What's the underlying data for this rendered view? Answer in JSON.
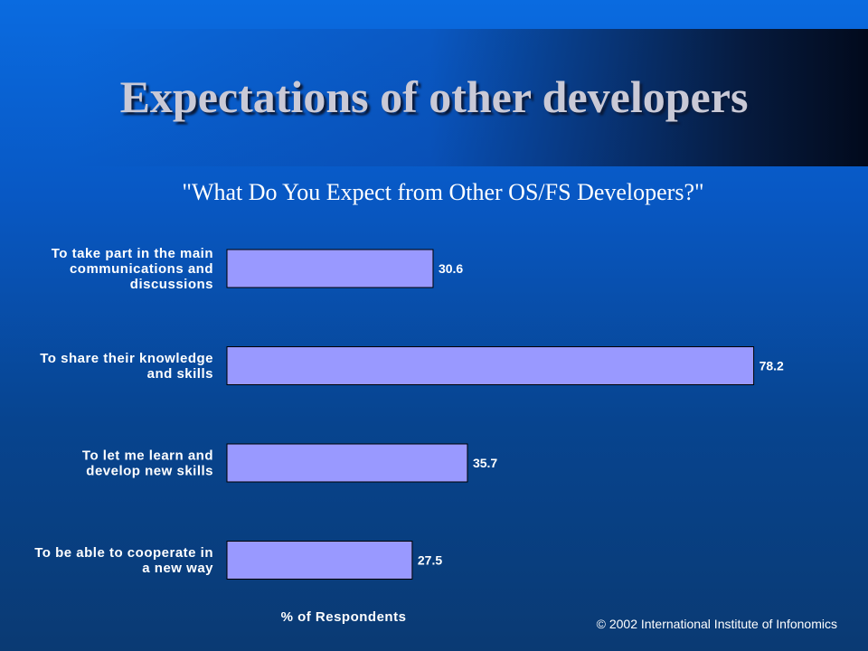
{
  "slide": {
    "title": "Expectations of other developers",
    "copyright": "© 2002 International Institute of Infonomics"
  },
  "colors": {
    "bar_fill": "#9999ff",
    "bar_stroke": "#000000",
    "text": "#ffffff"
  },
  "chart_data": {
    "type": "bar",
    "orientation": "horizontal",
    "title": "\"What Do You Expect from Other OS/FS Developers?\"",
    "xlabel": "% of Respondents",
    "ylabel": "",
    "categories": [
      [
        "To take part in the main",
        "communications and",
        "discussions"
      ],
      [
        "To share their knowledge",
        "and skills"
      ],
      [
        "To let me learn and",
        "develop new skills"
      ],
      [
        "To be able to cooperate in",
        "a new way"
      ]
    ],
    "values": [
      30.6,
      78.2,
      35.7,
      27.5
    ],
    "value_labels": [
      "30.6",
      "78.2",
      "35.7",
      "27.5"
    ],
    "xlim": [
      0,
      80
    ],
    "grid": false,
    "legend": "none"
  }
}
